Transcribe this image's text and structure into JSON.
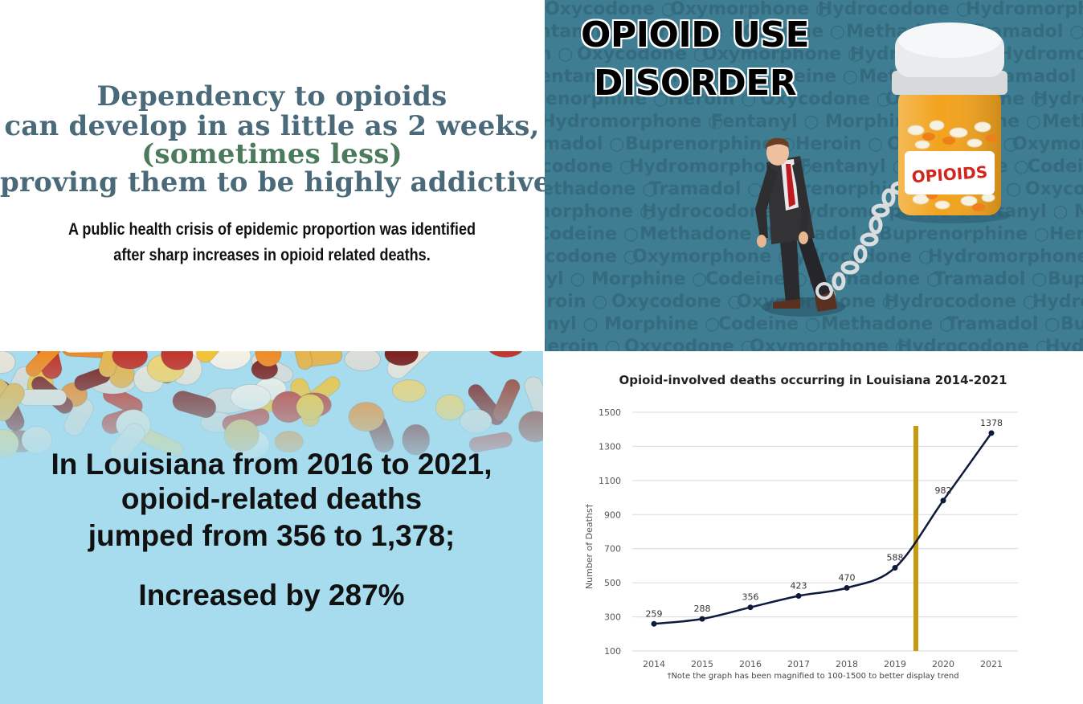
{
  "intro": {
    "line1": "Dependency to opioids",
    "line2": "can develop in as little as 2 weeks,",
    "line3": "(sometimes less)",
    "line4": "proving them to be highly addictive.",
    "sub1": "A public health crisis of epidemic proportion was identified",
    "sub2": "after sharp increases in opioid related deaths."
  },
  "illustration": {
    "title1": "OPIOID USE",
    "title2": "DISORDER",
    "bottle_label": "OPIOIDS",
    "background_words": [
      "Oxycodone",
      "Oxymorphone",
      "Hydrocodone",
      "Hydromorphone",
      "Fentanyl",
      "Morphine",
      "Codeine",
      "Methadone",
      "Tramadol",
      "Buprenorphine",
      "Heroin"
    ],
    "background_color": "#3f7d93",
    "bottle_color": "#f2a31e"
  },
  "stats": {
    "line1": "In Louisiana from 2016 to 2021,",
    "line2": "opioid-related deaths",
    "line3": "jumped from 356 to 1,378;",
    "line4": "Increased by 287%"
  },
  "chart_data": {
    "type": "line",
    "title": "Opioid-involved deaths occurring in Louisiana 2014-2021",
    "ylabel": "Number of Deaths†",
    "xlabel": "",
    "footnote": "†Note the graph has been magnified to 100-1500 to better display trend",
    "categories": [
      "2014",
      "2015",
      "2016",
      "2017",
      "2018",
      "2019",
      "2020",
      "2021"
    ],
    "series": [
      {
        "values": [
          259,
          288,
          356,
          423,
          470,
          588,
          982,
          1378
        ]
      }
    ],
    "data_labels": [
      "259",
      "288",
      "356",
      "423",
      "470",
      "588",
      "982",
      "1378"
    ],
    "ylim": [
      100,
      1500
    ],
    "yticks": [
      "100",
      "300",
      "500",
      "700",
      "900",
      "1100",
      "1300",
      "1500"
    ],
    "grid": true,
    "marker_line": {
      "between": [
        "2019",
        "2020"
      ],
      "color": "#c8980e"
    },
    "line_color": "#0e1a3a"
  }
}
